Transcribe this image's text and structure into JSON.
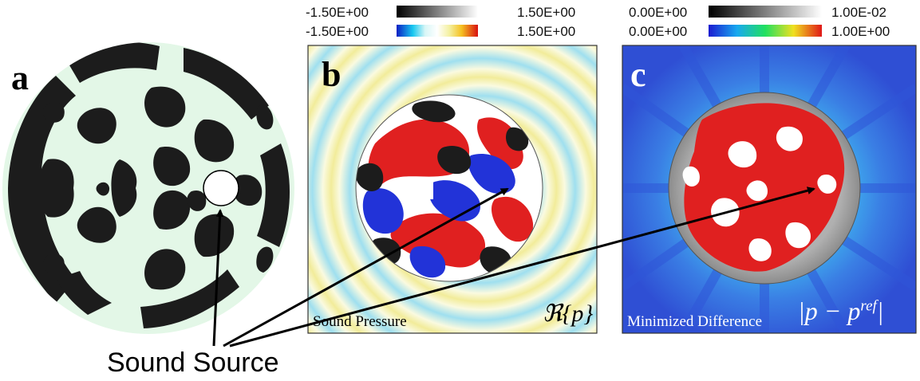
{
  "panels": {
    "a": {
      "letter": "a"
    },
    "b": {
      "letter": "b",
      "colorbar_gray": {
        "min": "-1.50E+00",
        "max": "1.50E+00"
      },
      "colorbar_color": {
        "min": "-1.50E+00",
        "max": "1.50E+00"
      },
      "caption": "Sound Pressure",
      "formula": "ℜ{p}"
    },
    "c": {
      "letter": "c",
      "colorbar_gray": {
        "min": "0.00E+00",
        "max": "1.00E-02"
      },
      "colorbar_color": {
        "min": "0.00E+00",
        "max": "1.00E+00"
      },
      "caption": "Minimized Difference",
      "formula": "|p − p",
      "formula_sup": "ref",
      "formula_end": "|"
    }
  },
  "annotation": {
    "label": "Sound Source"
  },
  "colors": {
    "material_dark": "#1c1c1c",
    "material_light": "#e3f7e7",
    "red": "#e02020",
    "blue": "#2233d8",
    "field_blue": "#3a6ee0",
    "field_yellow": "#f2ec9a",
    "field_cyan": "#aeeaf0"
  }
}
